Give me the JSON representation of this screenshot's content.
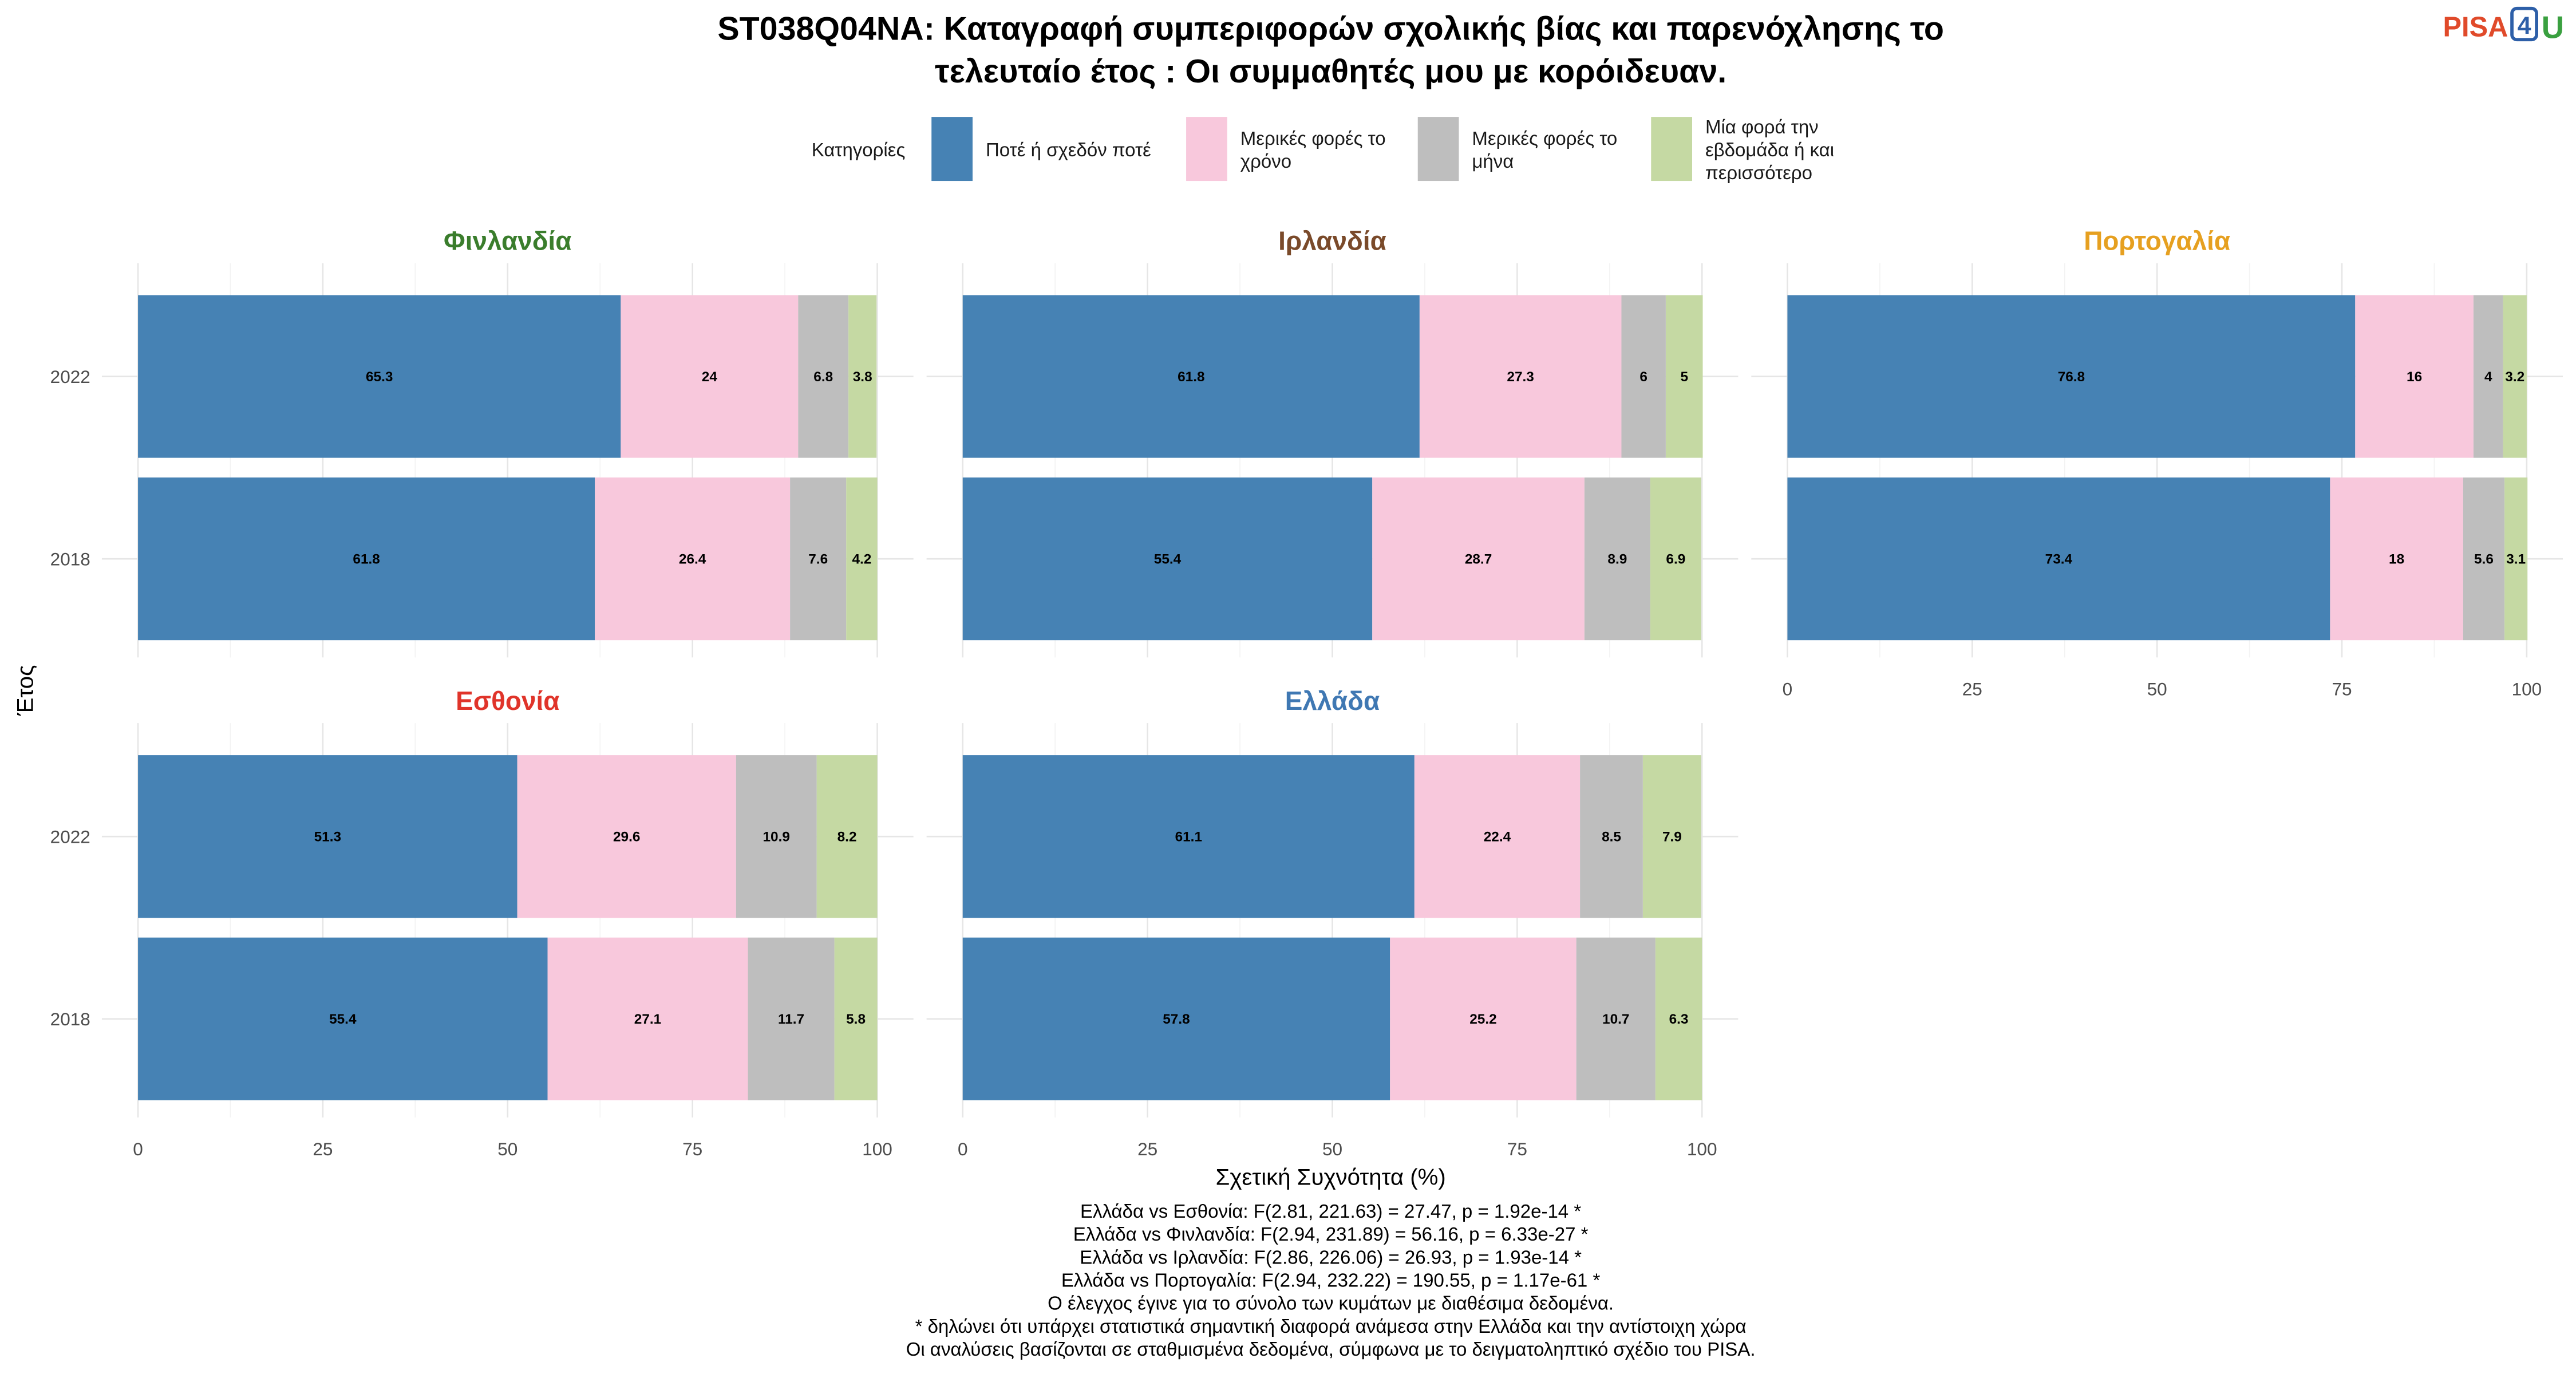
{
  "title": [
    "ST038Q04NA: Καταγραφή συμπεριφορών σχολικής βίας και παρενόχλησης το",
    "τελευταίο έτος : Οι συμμαθητές μου με κορόιδευαν."
  ],
  "logo": {
    "part1": "PISA",
    "part2": "4",
    "part3": "U",
    "color1": "#e04a2a",
    "color2": "#2d5fa8",
    "color3": "#3aa040"
  },
  "legend": {
    "title": "Κατηγορίες",
    "items": [
      {
        "lines": [
          "Ποτέ ή σχεδόν ποτέ"
        ],
        "color": "#4682b4"
      },
      {
        "lines": [
          "Μερικές φορές το",
          "χρόνο"
        ],
        "color": "#f8c8dc"
      },
      {
        "lines": [
          "Μερικές φορές το",
          "μήνα"
        ],
        "color": "#bebebe"
      },
      {
        "lines": [
          "Μία φορά την",
          "εβδομάδα ή και",
          "περισσότερο"
        ],
        "color": "#c5d9a3"
      }
    ]
  },
  "chart_data": {
    "type": "bar",
    "stacked": true,
    "orientation": "horizontal",
    "xlabel": "Σχετική Συχνότητα (%)",
    "ylabel": "Έτος",
    "xlim": [
      0,
      100
    ],
    "x_ticks": [
      0,
      25,
      50,
      75,
      100
    ],
    "categories": [
      "2022",
      "2018"
    ],
    "series_names": [
      "Ποτέ ή σχεδόν ποτέ",
      "Μερικές φορές το χρόνο",
      "Μερικές φορές το μήνα",
      "Μία φορά την εβδομάδα ή και περισσότερο"
    ],
    "series_colors": [
      "#4682b4",
      "#f8c8dc",
      "#bebebe",
      "#c5d9a3"
    ],
    "grid": true,
    "legend_position": "top",
    "panels": [
      {
        "name": "Φινλανδία",
        "color": "#3a7d2c",
        "rows": [
          {
            "year": "2022",
            "values": [
              65.3,
              24,
              6.8,
              3.8
            ]
          },
          {
            "year": "2018",
            "values": [
              61.8,
              26.4,
              7.6,
              4.2
            ]
          }
        ]
      },
      {
        "name": "Ιρλανδία",
        "color": "#7a4a2a",
        "rows": [
          {
            "year": "2022",
            "values": [
              61.8,
              27.3,
              6,
              5
            ]
          },
          {
            "year": "2018",
            "values": [
              55.4,
              28.7,
              8.9,
              6.9
            ]
          }
        ]
      },
      {
        "name": "Πορτογαλία",
        "color": "#e6a020",
        "rows": [
          {
            "year": "2022",
            "values": [
              76.8,
              16,
              4,
              3.2
            ]
          },
          {
            "year": "2018",
            "values": [
              73.4,
              18,
              5.6,
              3.1
            ]
          }
        ]
      },
      {
        "name": "Εσθονία",
        "color": "#e0342a",
        "rows": [
          {
            "year": "2022",
            "values": [
              51.3,
              29.6,
              10.9,
              8.2
            ]
          },
          {
            "year": "2018",
            "values": [
              55.4,
              27.1,
              11.7,
              5.8
            ]
          }
        ]
      },
      {
        "name": "Ελλάδα",
        "color": "#3f78b3",
        "rows": [
          {
            "year": "2022",
            "values": [
              61.1,
              22.4,
              8.5,
              7.9
            ]
          },
          {
            "year": "2018",
            "values": [
              57.8,
              25.2,
              10.7,
              6.3
            ]
          }
        ]
      }
    ]
  },
  "footer": [
    "Ελλάδα vs Εσθονία: F(2.81, 221.63) = 27.47, p = 1.92e-14 *",
    "Ελλάδα vs Φινλανδία: F(2.94, 231.89) = 56.16, p = 6.33e-27 *",
    "Ελλάδα vs Ιρλανδία: F(2.86, 226.06) = 26.93, p = 1.93e-14 *",
    "Ελλάδα vs Πορτογαλία: F(2.94, 232.22) = 190.55, p = 1.17e-61 *",
    "Ο έλεγχος έγινε για το σύνολο των κυμάτων με διαθέσιμα δεδομένα.",
    "* δηλώνει ότι υπάρχει στατιστικά σημαντική διαφορά ανάμεσα στην Ελλάδα και την αντίστοιχη χώρα",
    "Οι αναλύσεις βασίζονται σε σταθμισμένα δεδομένα, σύμφωνα με το δειγματοληπτικό σχέδιο του PISA."
  ]
}
